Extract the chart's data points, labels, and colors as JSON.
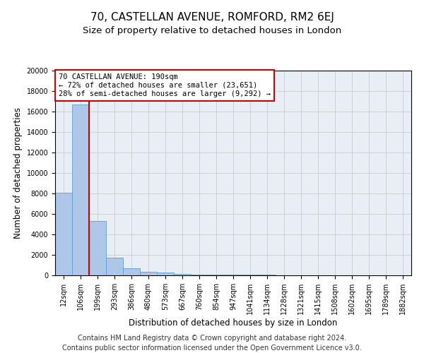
{
  "title": "70, CASTELLAN AVENUE, ROMFORD, RM2 6EJ",
  "subtitle": "Size of property relative to detached houses in London",
  "xlabel": "Distribution of detached houses by size in London",
  "ylabel": "Number of detached properties",
  "bar_labels": [
    "12sqm",
    "106sqm",
    "199sqm",
    "293sqm",
    "386sqm",
    "480sqm",
    "573sqm",
    "667sqm",
    "760sqm",
    "854sqm",
    "947sqm",
    "1041sqm",
    "1134sqm",
    "1228sqm",
    "1321sqm",
    "1415sqm",
    "1508sqm",
    "1602sqm",
    "1695sqm",
    "1789sqm",
    "1882sqm"
  ],
  "bar_values": [
    8100,
    16700,
    5300,
    1700,
    700,
    350,
    250,
    120,
    80,
    60,
    50,
    40,
    35,
    30,
    25,
    20,
    18,
    15,
    12,
    10,
    8
  ],
  "bar_color": "#aec6e8",
  "bar_edgecolor": "#5a9fd4",
  "annotation_text": "70 CASTELLAN AVENUE: 190sqm\n← 72% of detached houses are smaller (23,651)\n28% of semi-detached houses are larger (9,292) →",
  "annotation_box_color": "#ffffff",
  "annotation_box_edgecolor": "#cc0000",
  "vline_color": "#cc0000",
  "ylim": [
    0,
    20000
  ],
  "yticks": [
    0,
    2000,
    4000,
    6000,
    8000,
    10000,
    12000,
    14000,
    16000,
    18000,
    20000
  ],
  "grid_color": "#cccccc",
  "background_color": "#e8eef5",
  "footer_text": "Contains HM Land Registry data © Crown copyright and database right 2024.\nContains public sector information licensed under the Open Government Licence v3.0.",
  "title_fontsize": 11,
  "subtitle_fontsize": 9.5,
  "label_fontsize": 8.5,
  "tick_fontsize": 7,
  "footer_fontsize": 7,
  "annot_fontsize": 7.5
}
